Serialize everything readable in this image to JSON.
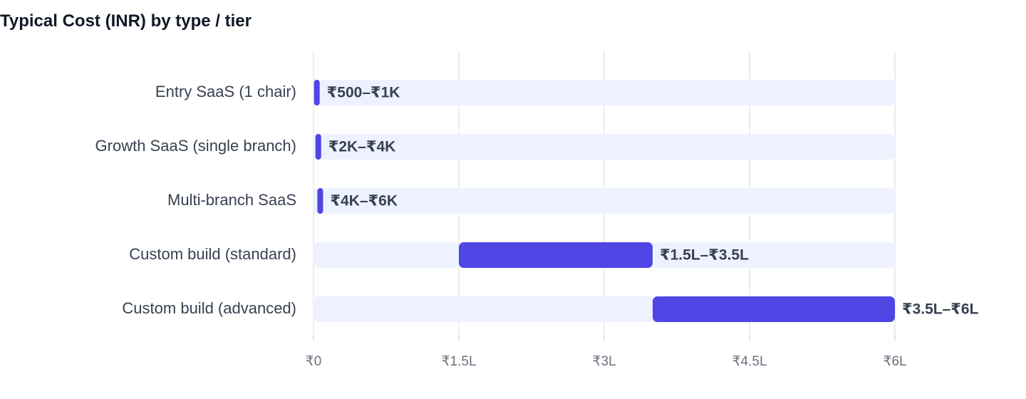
{
  "chart_data": {
    "type": "bar",
    "orientation": "horizontal",
    "title": "Typical Cost (INR) by type / tier",
    "categories": [
      "Entry SaaS (1 chair)",
      "Growth SaaS (single branch)",
      "Multi-branch SaaS",
      "Custom build (standard)",
      "Custom build (advanced)"
    ],
    "ranges": [
      {
        "min": 500,
        "max": 1000,
        "label": "₹500–₹1K"
      },
      {
        "min": 2000,
        "max": 4000,
        "label": "₹2K–₹4K"
      },
      {
        "min": 4000,
        "max": 6000,
        "label": "₹4K–₹6K"
      },
      {
        "min": 150000,
        "max": 350000,
        "label": "₹1.5L–₹3.5L"
      },
      {
        "min": 350000,
        "max": 600000,
        "label": "₹3.5L–₹6L"
      }
    ],
    "xlim": [
      0,
      600000
    ],
    "xticks": [
      {
        "value": 0,
        "label": "₹0"
      },
      {
        "value": 150000,
        "label": "₹1.5L"
      },
      {
        "value": 300000,
        "label": "₹3L"
      },
      {
        "value": 450000,
        "label": "₹4.5L"
      },
      {
        "value": 600000,
        "label": "₹6L"
      }
    ],
    "grid": true,
    "colors": {
      "bar": "#4f46e5",
      "track": "#eef2ff",
      "grid": "#e5e7eb"
    }
  }
}
